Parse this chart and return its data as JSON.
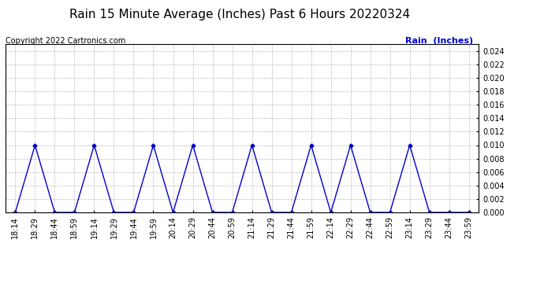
{
  "title": "Rain 15 Minute Average (Inches) Past 6 Hours 20220324",
  "copyright": "Copyright 2022 Cartronics.com",
  "legend_label": "Rain  (Inches)",
  "line_color": "#0000cc",
  "background_color": "#ffffff",
  "grid_color": "#bbbbbb",
  "ylim": [
    0.0,
    0.025
  ],
  "yticks": [
    0.0,
    0.002,
    0.004,
    0.006,
    0.008,
    0.01,
    0.012,
    0.014,
    0.016,
    0.018,
    0.02,
    0.022,
    0.024
  ],
  "x_labels": [
    "18:14",
    "18:29",
    "18:44",
    "18:59",
    "19:14",
    "19:29",
    "19:44",
    "19:59",
    "20:14",
    "20:29",
    "20:44",
    "20:59",
    "21:14",
    "21:29",
    "21:44",
    "21:59",
    "22:14",
    "22:29",
    "22:44",
    "22:59",
    "23:14",
    "23:29",
    "23:44",
    "23:59"
  ],
  "values": [
    0.0,
    0.01,
    0.0,
    0.0,
    0.01,
    0.0,
    0.0,
    0.01,
    0.0,
    0.01,
    0.0,
    0.0,
    0.01,
    0.0,
    0.0,
    0.01,
    0.0,
    0.01,
    0.0,
    0.0,
    0.01,
    0.0,
    0.0,
    0.0
  ],
  "title_fontsize": 11,
  "copyright_fontsize": 7,
  "legend_fontsize": 8,
  "tick_fontsize": 7,
  "marker": "D",
  "marker_size": 2.5,
  "line_width": 1.0
}
